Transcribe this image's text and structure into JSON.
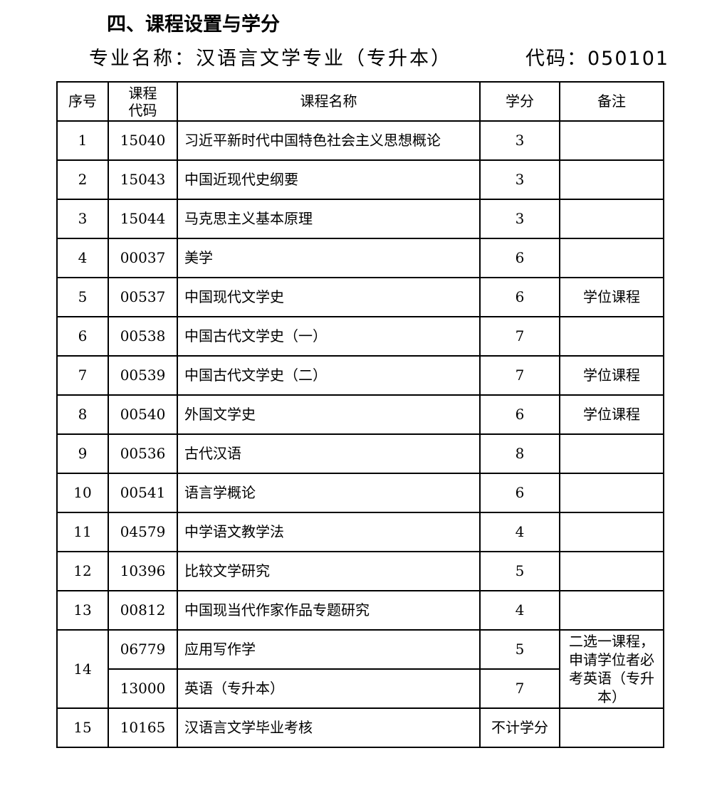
{
  "title": "四、课程设置与学分",
  "major_label": "专业名称：汉语言文学专业（专升本）",
  "code_label": "代码：050101",
  "table": {
    "headers": [
      "序号",
      "课程\n代码",
      "课程名称",
      "学分",
      "备注"
    ],
    "rows": [
      {
        "no": "1",
        "code": "15040",
        "name": "习近平新时代中国特色社会主义思想概论",
        "credit": "3",
        "note": ""
      },
      {
        "no": "2",
        "code": "15043",
        "name": "中国近现代史纲要",
        "credit": "3",
        "note": ""
      },
      {
        "no": "3",
        "code": "15044",
        "name": "马克思主义基本原理",
        "credit": "3",
        "note": ""
      },
      {
        "no": "4",
        "code": "00037",
        "name": "美学",
        "credit": "6",
        "note": ""
      },
      {
        "no": "5",
        "code": "00537",
        "name": "中国现代文学史",
        "credit": "6",
        "note": "学位课程"
      },
      {
        "no": "6",
        "code": "00538",
        "name": "中国古代文学史（一）",
        "credit": "7",
        "note": ""
      },
      {
        "no": "7",
        "code": "00539",
        "name": "中国古代文学史（二）",
        "credit": "7",
        "note": "学位课程"
      },
      {
        "no": "8",
        "code": "00540",
        "name": "外国文学史",
        "credit": "6",
        "note": "学位课程"
      },
      {
        "no": "9",
        "code": "00536",
        "name": "古代汉语",
        "credit": "8",
        "note": ""
      },
      {
        "no": "10",
        "code": "00541",
        "name": "语言学概论",
        "credit": "6",
        "note": ""
      },
      {
        "no": "11",
        "code": "04579",
        "name": "中学语文教学法",
        "credit": "4",
        "note": ""
      },
      {
        "no": "12",
        "code": "10396",
        "name": "比较文学研究",
        "credit": "5",
        "note": ""
      },
      {
        "no": "13",
        "code": "00812",
        "name": "中国现当代作家作品专题研究",
        "credit": "4",
        "note": ""
      },
      {
        "no": "14",
        "code": "06779",
        "name": "应用写作学",
        "credit": "5",
        "note": "二选一课程，申请学位者必考英语（专升本）",
        "rowspan": 2
      },
      {
        "no": "",
        "code": "13000",
        "name": "英语（专升本）",
        "credit": "7",
        "note": "",
        "continued": true
      },
      {
        "no": "15",
        "code": "10165",
        "name": "汉语言文学毕业考核",
        "credit": "不计学分",
        "note": ""
      }
    ]
  }
}
